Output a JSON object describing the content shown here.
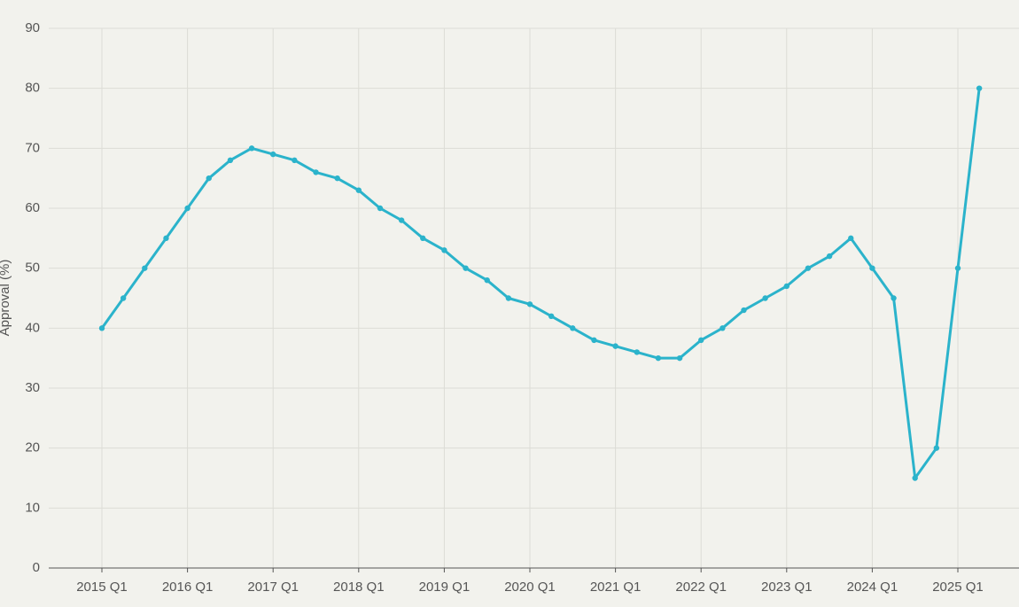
{
  "chart_data": {
    "type": "line",
    "y_label": "Approval (%)",
    "categories": [
      "2015 Q1",
      null,
      null,
      null,
      "2016 Q1",
      null,
      null,
      null,
      "2017 Q1",
      null,
      null,
      null,
      "2018 Q1",
      null,
      null,
      null,
      "2019 Q1",
      null,
      null,
      null,
      "2020 Q1",
      null,
      null,
      null,
      "2021 Q1",
      null,
      null,
      null,
      "2022 Q1",
      null,
      null,
      null,
      "2023 Q1",
      null,
      null,
      null,
      "2024 Q1",
      null,
      null,
      null,
      "2025 Q1",
      null
    ],
    "values": [
      40,
      45,
      50,
      55,
      60,
      65,
      68,
      70,
      69,
      68,
      66,
      65,
      63,
      60,
      58,
      55,
      53,
      50,
      48,
      45,
      44,
      42,
      40,
      38,
      37,
      36,
      35,
      35,
      38,
      40,
      43,
      45,
      47,
      50,
      52,
      55,
      50,
      45,
      15,
      20,
      50,
      80
    ],
    "color": "#2bb3cb",
    "ylim": [
      0,
      90
    ],
    "yticks": [
      0,
      10,
      20,
      30,
      40,
      50,
      60,
      70,
      80,
      90
    ],
    "grid": true
  }
}
